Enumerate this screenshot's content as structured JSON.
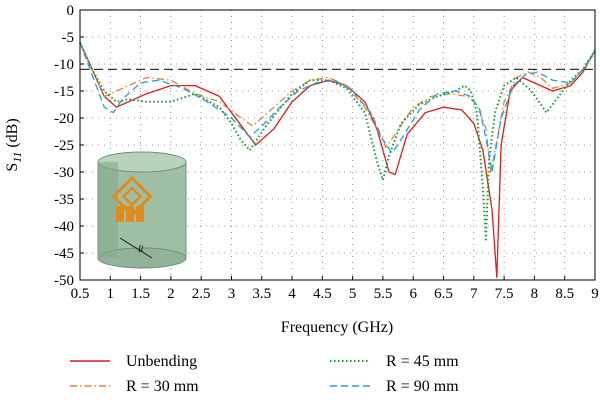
{
  "chart_data": {
    "type": "line",
    "xlabel": "Frequency (GHz)",
    "ylabel": "S",
    "ylabel_sub": "11",
    "ylabel_unit": " (dB)",
    "xlim": [
      0.5,
      9
    ],
    "ylim": [
      -50,
      0
    ],
    "xticks": [
      0.5,
      1,
      1.5,
      2,
      2.5,
      3,
      3.5,
      4,
      4.5,
      5,
      5.5,
      6,
      6.5,
      7,
      7.5,
      8,
      8.5,
      9
    ],
    "xtick_labels": [
      "0.5",
      "1",
      "1.5",
      "2",
      "2.5",
      "3",
      "3.5",
      "4",
      "4.5",
      "5",
      "5.5",
      "6",
      "6.5",
      "7",
      "7.5",
      "8",
      "8.5",
      "9"
    ],
    "yticks": [
      0,
      -5,
      -10,
      -15,
      -20,
      -25,
      -30,
      -35,
      -40,
      -45,
      -50
    ],
    "ytick_labels": [
      "0",
      "-5",
      "-10",
      "-15",
      "-20",
      "-25",
      "-30",
      "-35",
      "-40",
      "-45",
      "-50"
    ],
    "grid": true,
    "reference_line": {
      "y": -11,
      "style": "dashed",
      "color": "#333333"
    },
    "legend_position": "bottom",
    "series": [
      {
        "name": "Unbending",
        "color": "#e31a1c",
        "dash": "solid",
        "x": [
          0.5,
          0.7,
          0.9,
          1.1,
          1.3,
          1.6,
          2.0,
          2.4,
          2.8,
          3.1,
          3.4,
          3.7,
          4.0,
          4.3,
          4.6,
          4.9,
          5.2,
          5.4,
          5.6,
          5.7,
          5.9,
          6.2,
          6.5,
          6.8,
          7.0,
          7.15,
          7.3,
          7.38,
          7.45,
          7.6,
          7.8,
          8.0,
          8.3,
          8.6,
          8.8,
          9.0
        ],
        "y": [
          -6,
          -11,
          -16,
          -18,
          -17,
          -15.5,
          -14,
          -14,
          -16,
          -20.5,
          -25,
          -22,
          -17,
          -14,
          -13,
          -14,
          -17,
          -22,
          -30,
          -30.5,
          -23,
          -19,
          -18,
          -18.5,
          -21,
          -26,
          -37,
          -49.5,
          -25,
          -15,
          -12.5,
          -13.5,
          -15,
          -14,
          -11.5,
          -7.5
        ]
      },
      {
        "name": "R = 30 mm",
        "color": "#e8803a",
        "dash": "dashdot",
        "x": [
          0.5,
          0.7,
          0.9,
          1.1,
          1.3,
          1.6,
          2.0,
          2.4,
          2.8,
          3.1,
          3.35,
          3.6,
          4.0,
          4.3,
          4.6,
          4.9,
          5.2,
          5.4,
          5.55,
          5.7,
          6.0,
          6.3,
          6.6,
          6.9,
          7.05,
          7.2,
          7.28,
          7.35,
          7.5,
          7.7,
          7.9,
          8.1,
          8.3,
          8.6,
          8.8,
          9.0
        ],
        "y": [
          -6,
          -11,
          -16,
          -15,
          -14,
          -12.5,
          -13,
          -15.5,
          -17,
          -19.5,
          -21.5,
          -19,
          -15,
          -13,
          -12.5,
          -14,
          -18,
          -22,
          -25.5,
          -23,
          -18,
          -16,
          -15.5,
          -16,
          -17.5,
          -22,
          -30,
          -26,
          -17,
          -12.5,
          -11.5,
          -12.5,
          -14.5,
          -13.5,
          -11,
          -8
        ]
      },
      {
        "name": "R = 45 mm",
        "color": "#1a9a2e",
        "dash": "dotted",
        "x": [
          0.5,
          0.7,
          0.9,
          1.1,
          1.3,
          1.6,
          2.0,
          2.4,
          2.8,
          3.0,
          3.15,
          3.3,
          3.6,
          4.0,
          4.3,
          4.6,
          4.9,
          5.2,
          5.4,
          5.5,
          5.6,
          5.8,
          6.1,
          6.4,
          6.7,
          6.85,
          6.95,
          7.05,
          7.15,
          7.2,
          7.25,
          7.35,
          7.5,
          7.7,
          7.95,
          8.2,
          8.4,
          8.6,
          8.8,
          9.0
        ],
        "y": [
          -6,
          -11,
          -15,
          -17,
          -16.5,
          -17,
          -17,
          -15.5,
          -18,
          -21,
          -24,
          -26,
          -21,
          -15.5,
          -13,
          -13,
          -14.5,
          -19,
          -28,
          -31.5,
          -27,
          -21,
          -17.5,
          -16,
          -15,
          -14,
          -15,
          -19,
          -33,
          -42.5,
          -28,
          -19,
          -14,
          -12.5,
          -15,
          -19,
          -16,
          -13,
          -11,
          -7.5
        ]
      },
      {
        "name": "R = 90 mm",
        "color": "#1fa3dc",
        "dash": "dashed",
        "x": [
          0.5,
          0.7,
          0.9,
          1.05,
          1.2,
          1.5,
          1.8,
          2.2,
          2.6,
          3.0,
          3.3,
          3.5,
          3.8,
          4.1,
          4.4,
          4.7,
          5.0,
          5.3,
          5.5,
          5.65,
          5.8,
          6.1,
          6.4,
          6.7,
          6.95,
          7.1,
          7.22,
          7.3,
          7.45,
          7.65,
          7.85,
          8.05,
          8.3,
          8.6,
          8.8,
          9.0
        ],
        "y": [
          -6,
          -12,
          -18,
          -19,
          -16.5,
          -13.5,
          -13,
          -14.5,
          -17,
          -20,
          -23.5,
          -21.5,
          -18,
          -15,
          -13.5,
          -13,
          -15,
          -19,
          -24,
          -26.5,
          -24,
          -18.5,
          -15.5,
          -15,
          -16,
          -18.5,
          -25,
          -30,
          -20,
          -14,
          -12,
          -11.5,
          -13,
          -13.5,
          -11,
          -7.5
        ]
      }
    ]
  }
}
